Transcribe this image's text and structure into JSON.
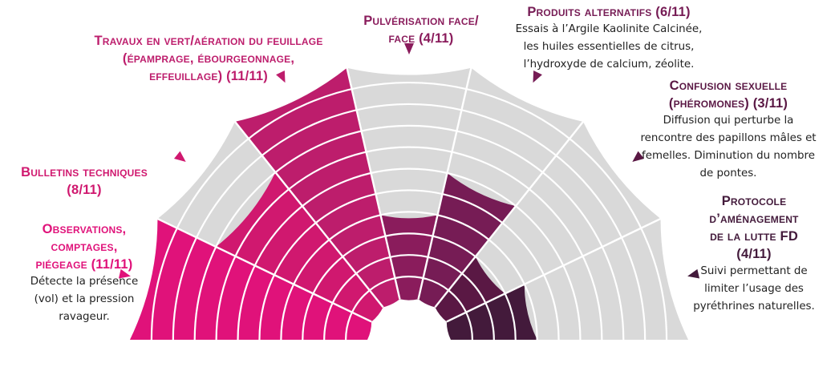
{
  "colors": {
    "empty": "#d9d9d9",
    "separator": "#ffffff"
  },
  "chart_data": {
    "type": "polar-bar",
    "max": 11,
    "unit": "/11",
    "categories": [
      {
        "id": "observations",
        "title_lines": [
          "Observations,",
          "comptages,",
          "piégeage (11/11)"
        ],
        "desc_lines": [
          "Détecte la présence",
          "(vol) et la pression",
          "ravageur."
        ],
        "value": 11,
        "color": "#e0127a"
      },
      {
        "id": "bulletins",
        "title_lines": [
          "Bulletins techniques",
          "(8/11)"
        ],
        "desc_lines": [],
        "value": 8,
        "color": "#d0186f"
      },
      {
        "id": "travaux",
        "title_lines": [
          "Travaux en vert/aération du feuillage",
          "(épamprage, ébourgeonnage,",
          "effeuillage) (11/11)"
        ],
        "desc_lines": [],
        "value": 11,
        "color": "#bd1d6c"
      },
      {
        "id": "pulverisation",
        "title_lines": [
          "Pulvérisation face/",
          "face (4/11)"
        ],
        "desc_lines": [],
        "value": 4,
        "color": "#8a1c5c"
      },
      {
        "id": "produits",
        "title_lines": [
          "Produits alternatifs (6/11)"
        ],
        "desc_lines": [
          "Essais à l’Argile Kaolinite Calcinée,",
          "les huiles essentielles de citrus,",
          "l’hydroxyde de calcium, zéolite."
        ],
        "value": 6,
        "color": "#761c55"
      },
      {
        "id": "confusion",
        "title_lines": [
          "Confusion sexuelle",
          "(phéromones) (3/11)"
        ],
        "desc_lines": [
          "Diffusion qui perturbe la",
          "rencontre des papillons mâles et",
          "femelles. Diminution du nombre",
          "de pontes."
        ],
        "value": 3,
        "color": "#5a1844"
      },
      {
        "id": "protocole",
        "title_lines": [
          "Protocole",
          "d’aménagement",
          "de la lutte FD",
          "(4/11)"
        ],
        "desc_lines": [
          "Suivi permettant de",
          "limiter l’usage des",
          "pyréthrines naturelles."
        ],
        "value": 4,
        "color": "#431a3b"
      }
    ]
  }
}
